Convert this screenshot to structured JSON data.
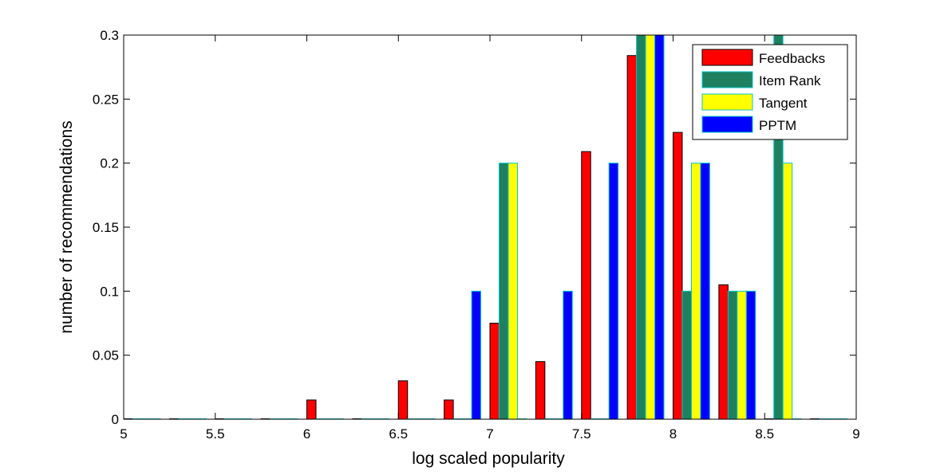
{
  "chart_data": {
    "type": "bar",
    "xlabel": "log scaled popularity",
    "ylabel": "number of recommendations",
    "xlim": [
      5,
      9
    ],
    "ylim": [
      0,
      0.3
    ],
    "xticks": [
      "5",
      "5.5",
      "6",
      "6.5",
      "7",
      "7.5",
      "8",
      "8.5",
      "9"
    ],
    "yticks": [
      "0",
      "0.05",
      "0.1",
      "0.15",
      "0.2",
      "0.25",
      "0.3"
    ],
    "bin_centers": [
      5.1,
      5.35,
      5.6,
      5.85,
      6.1,
      6.35,
      6.6,
      6.85,
      7.1,
      7.35,
      7.6,
      7.85,
      8.1,
      8.35,
      8.6,
      8.85
    ],
    "series": [
      {
        "name": "Feedbacks",
        "color": "#ff0000",
        "values": [
          0,
          0,
          0,
          0,
          0.015,
          0,
          0.03,
          0.015,
          0.075,
          0.045,
          0.209,
          0.284,
          0.224,
          0.105,
          0,
          0
        ]
      },
      {
        "name": "Item Rank",
        "color": "#1f8060",
        "values": [
          0,
          0,
          0,
          0,
          0,
          0,
          0,
          0,
          0.2,
          0,
          0,
          0.3,
          0.1,
          0.1,
          0.3,
          0
        ]
      },
      {
        "name": "Tangent",
        "color": "#ffff00",
        "values": [
          0,
          0,
          0,
          0,
          0,
          0,
          0,
          0,
          0.2,
          0,
          0,
          0.3,
          0.2,
          0.1,
          0.2,
          0
        ]
      },
      {
        "name": "PPTM",
        "color": "#0000ff",
        "values": [
          0,
          0,
          0,
          0,
          0,
          0,
          0,
          0.1,
          0,
          0.1,
          0.2,
          0.3,
          0.2,
          0.1,
          0,
          0
        ]
      }
    ],
    "legend_position": "top-right",
    "grid": false
  }
}
